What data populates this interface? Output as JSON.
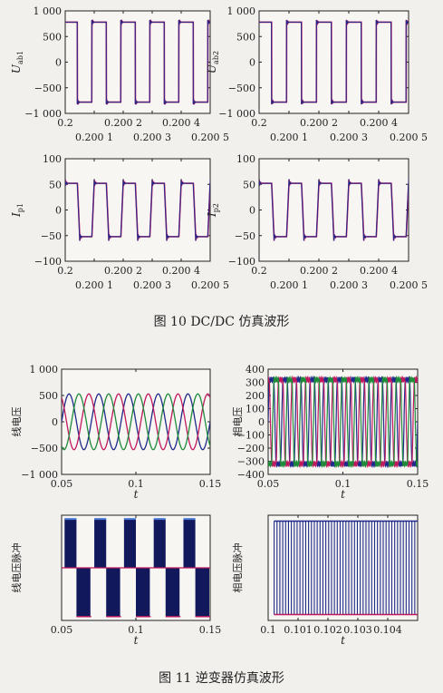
{
  "captions": {
    "fig10": "图 10   DC/DC 仿真波形",
    "fig11": "图 11   逆变器仿真波形"
  },
  "colors": {
    "magenta": "#c0185e",
    "blue": "#1f2a8a",
    "green": "#1e8a3a",
    "frame": "#222222"
  },
  "chart_data": [
    {
      "type": "line",
      "ylabel": "U",
      "ylabel_sub": "ab1",
      "waveform": "square-with-ringing",
      "xlim": [
        0.2,
        0.2005
      ],
      "ylim": [
        -1000,
        1000
      ],
      "xticks_top": [
        "0.2",
        "0.200 2",
        "0.200 4"
      ],
      "xticks_bottom": [
        "0.200 1",
        "0.200 3",
        "0.200 5"
      ],
      "yticks": [
        "1 000",
        "500",
        "0",
        "−500",
        "−1 000"
      ],
      "high": 780,
      "low": -780,
      "periods": 5,
      "series_colors": [
        "magenta",
        "blue"
      ]
    },
    {
      "type": "line",
      "ylabel": "U",
      "ylabel_sub": "ab2",
      "waveform": "square-with-ringing",
      "xlim": [
        0.2,
        0.2005
      ],
      "ylim": [
        -1000,
        1000
      ],
      "xticks_top": [
        "0.2",
        "0.200 2",
        "0.200 4"
      ],
      "xticks_bottom": [
        "0.200 1",
        "0.200 3",
        "0.200 5"
      ],
      "yticks": [
        "1 000",
        "500",
        "0",
        "−500",
        "−1 000"
      ],
      "high": 780,
      "low": -780,
      "periods": 5,
      "series_colors": [
        "magenta",
        "blue"
      ]
    },
    {
      "type": "line",
      "ylabel": "I",
      "ylabel_sub": "p1",
      "waveform": "stepped-with-ringing",
      "xlim": [
        0.2,
        0.2005
      ],
      "ylim": [
        -100,
        100
      ],
      "xticks_top": [
        "0.2",
        "0.200 2",
        "0.200 4"
      ],
      "xticks_bottom": [
        "0.200 1",
        "0.200 3",
        "0.200 5"
      ],
      "yticks": [
        "100",
        "50",
        "0",
        "−50",
        "−100"
      ],
      "high": 52,
      "low": -52,
      "periods": 5,
      "series_colors": [
        "magenta",
        "blue"
      ]
    },
    {
      "type": "line",
      "ylabel": "I",
      "ylabel_sub": "p2",
      "waveform": "stepped-with-ringing",
      "xlim": [
        0.2,
        0.2005
      ],
      "ylim": [
        -100,
        100
      ],
      "xticks_top": [
        "0.2",
        "0.200 2",
        "0.200 4"
      ],
      "xticks_bottom": [
        "0.200 1",
        "0.200 3",
        "0.200 5"
      ],
      "yticks": [
        "100",
        "50",
        "0",
        "−50",
        "−100"
      ],
      "high": 52,
      "low": -52,
      "periods": 5,
      "series_colors": [
        "magenta",
        "blue"
      ]
    },
    {
      "type": "line",
      "ylabel": "线电压",
      "xlabel": "t",
      "waveform": "three-phase-sine",
      "xlim": [
        0.05,
        0.15
      ],
      "ylim": [
        -1000,
        1000
      ],
      "xticks": [
        "0.05",
        "0.1",
        "0.15"
      ],
      "yticks": [
        "1 000",
        "500",
        "0",
        "−500",
        "−1 000"
      ],
      "amplitude": 530,
      "cycles": 5,
      "series_colors": [
        "blue",
        "magenta",
        "green"
      ]
    },
    {
      "type": "line",
      "ylabel": "相电压",
      "xlabel": "t",
      "waveform": "three-phase-stepped",
      "xlim": [
        0.05,
        0.15
      ],
      "ylim": [
        -400,
        400
      ],
      "xticks": [
        "0.05",
        "0.1",
        "0.15"
      ],
      "yticks": [
        "400",
        "300",
        "200",
        "100",
        "0",
        "−100",
        "−200",
        "−300",
        "−400"
      ],
      "amplitude": 320,
      "cycles": 11,
      "series_colors": [
        "blue",
        "magenta",
        "green"
      ]
    },
    {
      "type": "line",
      "ylabel": "线电压脉冲",
      "xlabel": "t",
      "waveform": "pwm-bipolar",
      "xlim": [
        0.05,
        0.15
      ],
      "ylim": [
        -700,
        700
      ],
      "xticks": [
        "0.05",
        "0.1",
        "0.15"
      ],
      "yticks": [],
      "high": 650,
      "low": -650,
      "cycles": 5,
      "series_colors": [
        "blue",
        "magenta"
      ]
    },
    {
      "type": "line",
      "ylabel": "相电压脉冲",
      "xlabel": "t",
      "waveform": "pwm-dense",
      "xlim": [
        0.1,
        0.105
      ],
      "ylim": [
        -360,
        360
      ],
      "xticks": [
        "0.1",
        "0.101",
        "0.102",
        "0.103",
        "0.104"
      ],
      "yticks": [],
      "high": 320,
      "low": -320,
      "pulses": 50,
      "series_colors": [
        "blue",
        "magenta"
      ]
    }
  ]
}
